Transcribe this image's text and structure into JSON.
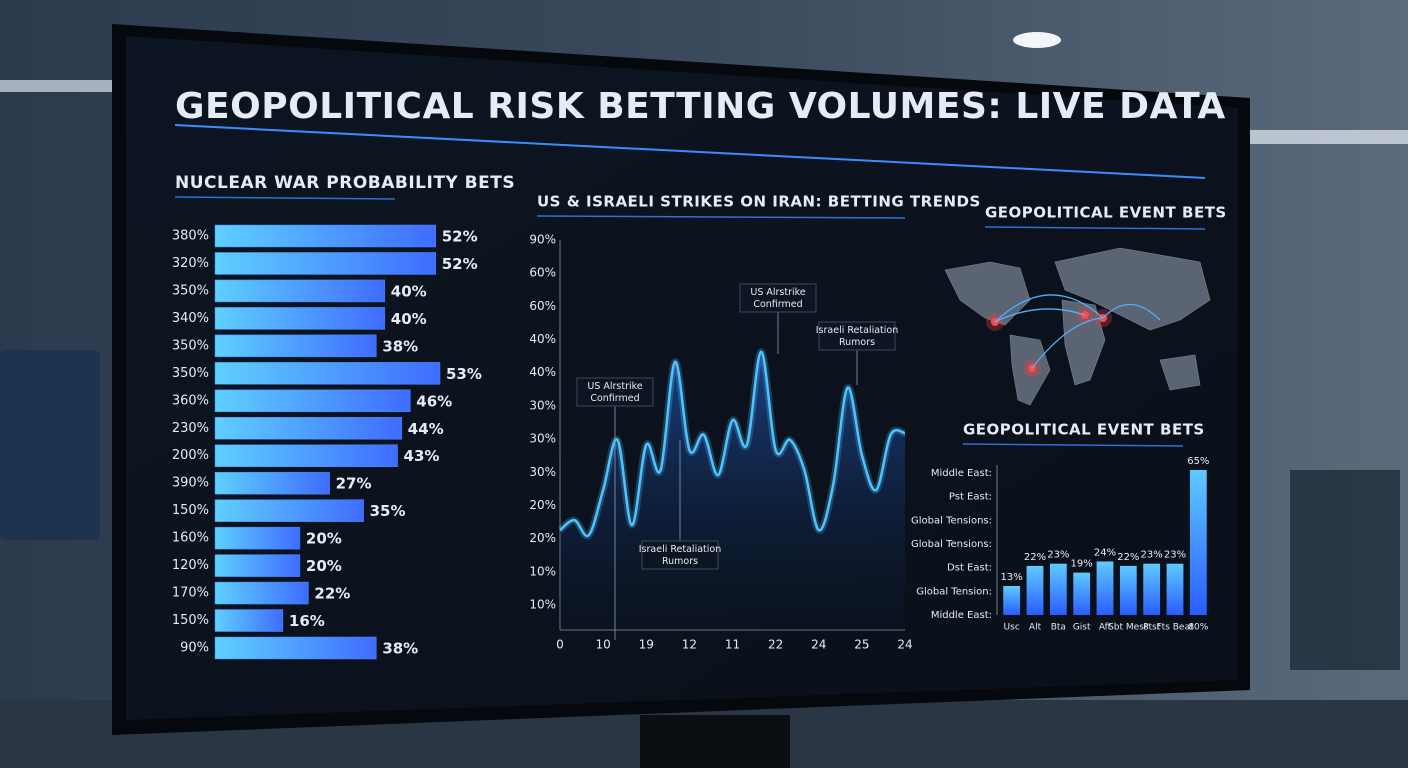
{
  "title": "GEOPOLITICAL RISK BETTING VOLUMES: LIVE DATA",
  "chart_data": [
    {
      "type": "bar",
      "horizontal": true,
      "title": "NUCLEAR WAR PROBABILITY BETS",
      "color": "#3f8cff",
      "categories": [
        "380%",
        "320%",
        "350%",
        "340%",
        "350%",
        "350%",
        "360%",
        "230%",
        "200%",
        "390%",
        "150%",
        "160%",
        "120%",
        "170%",
        "150%",
        "90%"
      ],
      "values": [
        52,
        52,
        40,
        40,
        38,
        53,
        46,
        44,
        43,
        27,
        35,
        20,
        20,
        22,
        16,
        38
      ],
      "value_labels": [
        "52%",
        "52%",
        "40%",
        "40%",
        "38%",
        "53%",
        "46%",
        "44%",
        "43%",
        "27%",
        "35%",
        "20%",
        "20%",
        "22%",
        "16%",
        "38%"
      ]
    },
    {
      "type": "line",
      "title": "US & ISRAELI STRIKES ON IRAN: BETTING TRENDS",
      "color": "#4fc3ff",
      "ylim": [
        10,
        90
      ],
      "y_labels": [
        "90%",
        "60%",
        "60%",
        "40%",
        "40%",
        "30%",
        "30%",
        "30%",
        "20%",
        "20%",
        "10%",
        "10%"
      ],
      "x_labels": [
        "0",
        "10",
        "19",
        "12",
        "11",
        "22",
        "24",
        "25",
        "24"
      ],
      "values": [
        26.4,
        28.6,
        25.3,
        35.2,
        46.2,
        27.5,
        45.1,
        39.6,
        63.3,
        44.0,
        47.3,
        38.5,
        50.5,
        45.1,
        65.5,
        44.0,
        46.2,
        39.6,
        26.4,
        36.3,
        57.6,
        42.9,
        35.2,
        47.3,
        47.7
      ],
      "annotations": [
        "US Alrstrike Confirmed",
        "US Alrstrike Confirmed",
        "Israeli Retaliation Rumors",
        "Israeli Retaliation Rumors"
      ]
    },
    {
      "type": "map",
      "title": "GEOPOLITICAL EVENT BETS"
    },
    {
      "type": "bar",
      "title": "GEOPOLITICAL EVENT BETS",
      "color": "#3f8cff",
      "y_labels": [
        "Middle East:",
        "Pst East:",
        "Global Tensions:",
        "Global Tensions:",
        "Dst East:",
        "Global Tension:",
        "Middle East:"
      ],
      "categories": [
        "Usc",
        "Alt",
        "Bta",
        "Gist",
        "Aft",
        "Sbt Mess",
        "Ptst",
        "Fts Beat",
        "80%"
      ],
      "values": [
        13,
        22,
        23,
        19,
        24,
        22,
        23,
        23,
        65
      ],
      "value_labels": [
        "13%",
        "22%",
        "23%",
        "19%",
        "24%",
        "22%",
        "23%",
        "23%",
        "65%"
      ]
    }
  ]
}
